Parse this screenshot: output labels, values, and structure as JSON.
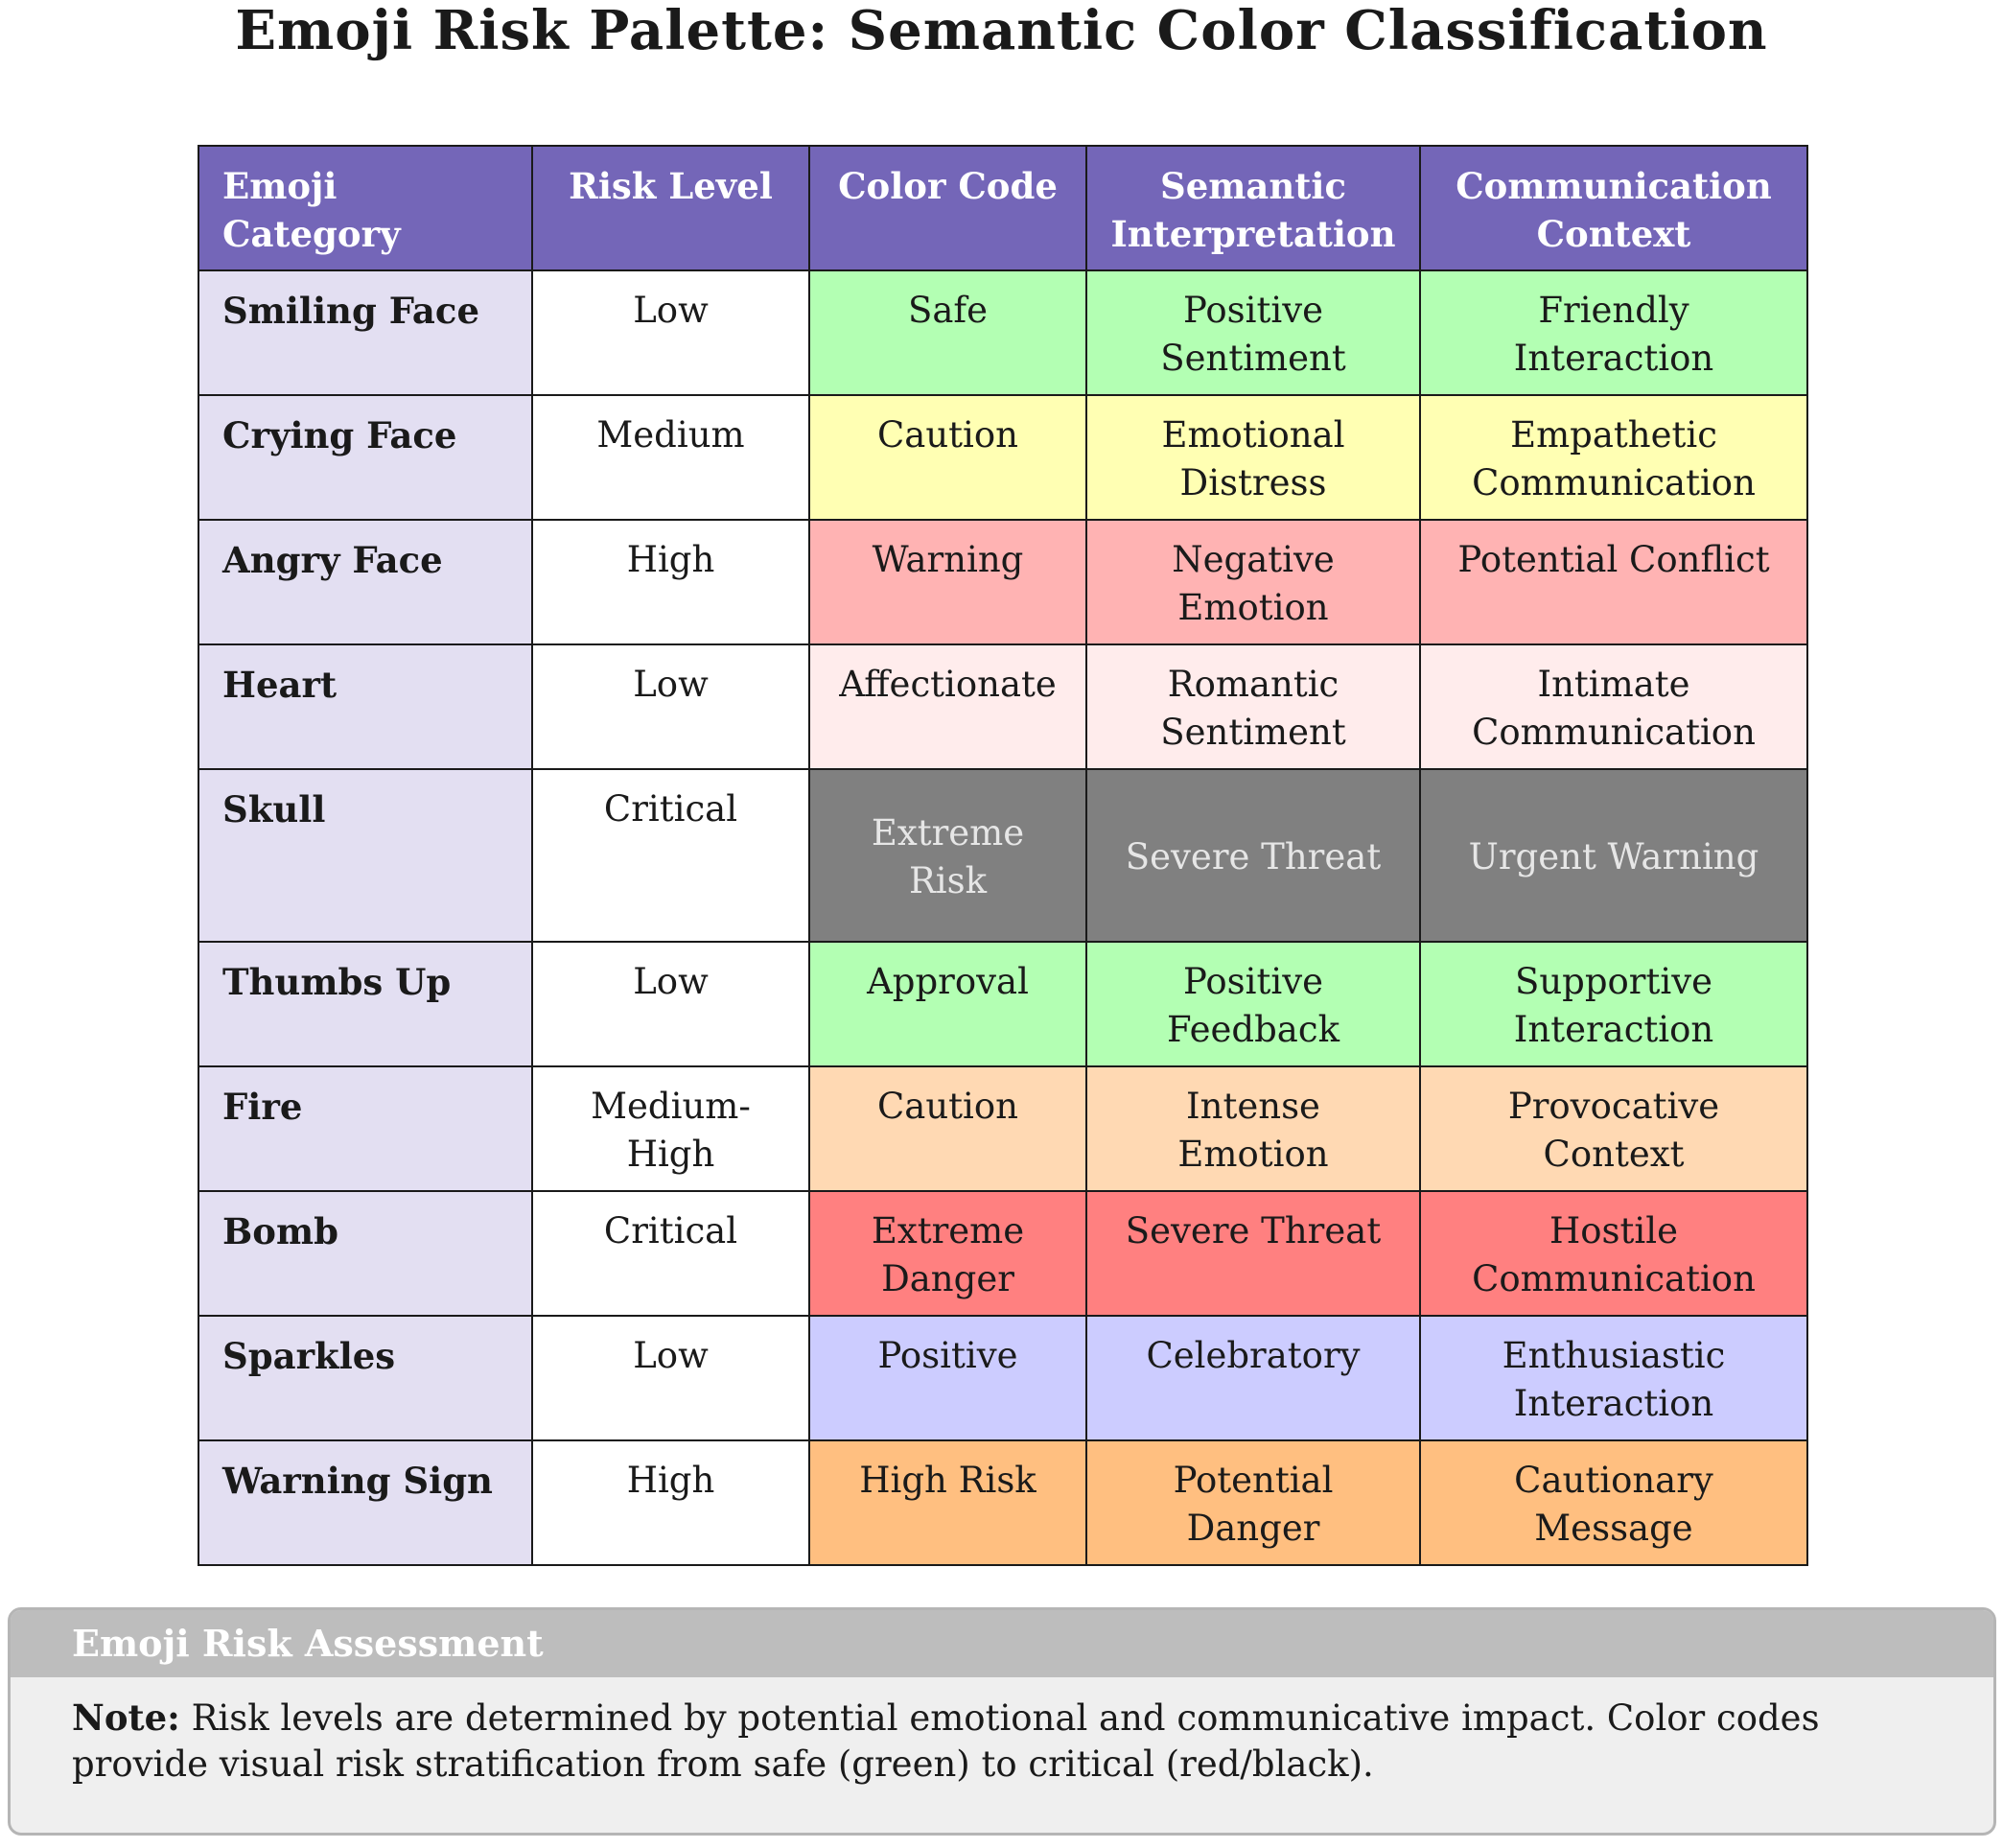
{
  "title": "Emoji Risk Palette: Semantic Color Classification",
  "table": {
    "headers": [
      "Emoji Category",
      "Risk Level",
      "Color Code",
      "Semantic Interpretation",
      "Communication Context"
    ],
    "header_color": "#7466b8",
    "rows": [
      {
        "category": "Smiling Face",
        "risk": "Low",
        "color_code": "Safe",
        "semantic": "Positive Sentiment",
        "context": "Friendly Interaction",
        "fill": "#b3ffb3",
        "text_color": "#1a1a1a"
      },
      {
        "category": "Crying Face",
        "risk": "Medium",
        "color_code": "Caution",
        "semantic": "Emotional Distress",
        "context": "Empathetic Communication",
        "fill": "#ffffb3",
        "text_color": "#1a1a1a"
      },
      {
        "category": "Angry Face",
        "risk": "High",
        "color_code": "Warning",
        "semantic": "Negative Emotion",
        "context": "Potential Conflict",
        "fill": "#ffb3b3",
        "text_color": "#1a1a1a"
      },
      {
        "category": "Heart",
        "risk": "Low",
        "color_code": "Affectionate",
        "semantic": "Romantic Sentiment",
        "context": "Intimate Communication",
        "fill": "#ffecec",
        "text_color": "#1a1a1a"
      },
      {
        "category": "Skull",
        "risk": "Critical",
        "color_code": "Extreme Risk",
        "semantic": "Severe Threat",
        "context": "Urgent Warning",
        "fill": "#808080",
        "text_color": "#e6e6e6"
      },
      {
        "category": "Thumbs Up",
        "risk": "Low",
        "color_code": "Approval",
        "semantic": "Positive Feedback",
        "context": "Supportive Interaction",
        "fill": "#b3ffb3",
        "text_color": "#1a1a1a"
      },
      {
        "category": "Fire",
        "risk": "Medium-High",
        "color_code": "Caution",
        "semantic": "Intense Emotion",
        "context": "Provocative Context",
        "fill": "#ffd9b3",
        "text_color": "#1a1a1a"
      },
      {
        "category": "Bomb",
        "risk": "Critical",
        "color_code": "Extreme Danger",
        "semantic": "Severe Threat",
        "context": "Hostile Communication",
        "fill": "#ff8080",
        "text_color": "#1a1a1a"
      },
      {
        "category": "Sparkles",
        "risk": "Low",
        "color_code": "Positive",
        "semantic": "Celebratory",
        "context": "Enthusiastic Interaction",
        "fill": "#ccccff",
        "text_color": "#1a1a1a"
      },
      {
        "category": "Warning Sign",
        "risk": "High",
        "color_code": "High Risk",
        "semantic": "Potential Danger",
        "context": "Cautionary Message",
        "fill": "#ffbf80",
        "text_color": "#1a1a1a"
      }
    ]
  },
  "note": {
    "header": "Emoji Risk Assessment",
    "label": "Note:",
    "text": "Risk levels are determined by potential emotional and communicative impact. Color codes provide visual risk stratification from safe (green) to critical (red/black)."
  }
}
